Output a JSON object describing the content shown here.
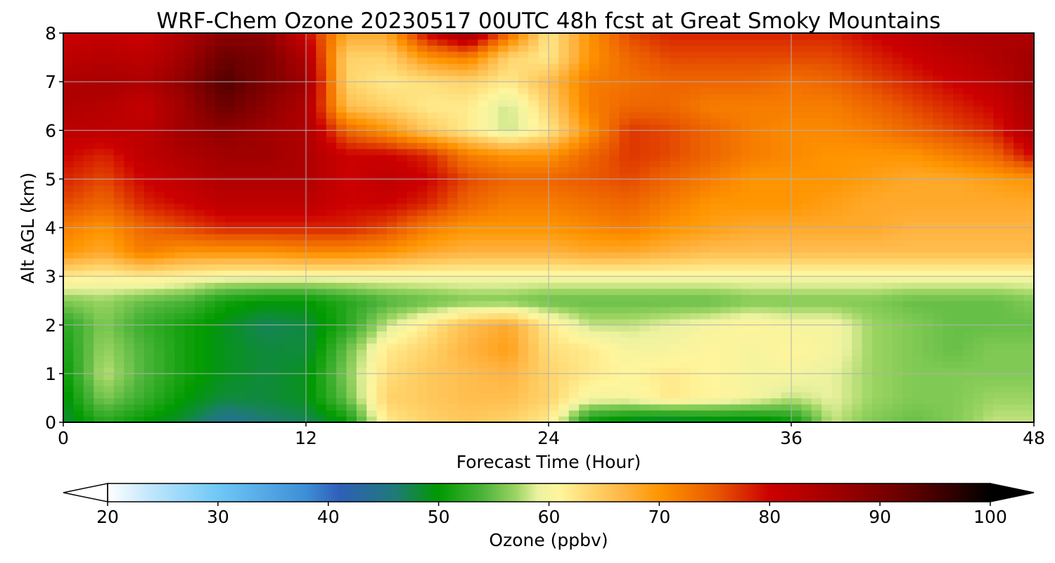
{
  "chart_data": {
    "type": "heatmap",
    "title": "WRF-Chem Ozone  20230517 00UTC 48h fcst at Great Smoky Mountains",
    "xlabel": "Forecast Time (Hour)",
    "ylabel": "Alt AGL (km)",
    "xlim": [
      0,
      48
    ],
    "ylim": [
      0,
      8
    ],
    "xticks": [
      "0",
      "12",
      "24",
      "36",
      "48"
    ],
    "yticks": [
      "0",
      "1",
      "2",
      "3",
      "4",
      "5",
      "6",
      "7",
      "8"
    ],
    "grid": true,
    "x": [
      0,
      2,
      4,
      6,
      8,
      10,
      12,
      14,
      16,
      18,
      20,
      22,
      24,
      26,
      28,
      30,
      32,
      34,
      36,
      38,
      40,
      42,
      44,
      46,
      48
    ],
    "y": [
      0,
      0.5,
      1,
      1.5,
      2,
      2.5,
      3,
      3.5,
      4,
      4.5,
      5,
      5.5,
      6,
      6.5,
      7,
      7.5,
      8
    ],
    "z": [
      [
        48,
        52,
        50,
        48,
        44,
        46,
        47,
        50,
        62,
        64,
        65,
        64,
        62,
        50,
        48,
        47,
        48,
        48,
        50,
        58,
        56,
        55,
        56,
        58,
        58
      ],
      [
        49,
        56,
        53,
        50,
        48,
        48,
        49,
        55,
        64,
        65,
        66,
        66,
        64,
        60,
        60,
        62,
        61,
        60,
        58,
        59,
        57,
        56,
        56,
        57,
        57
      ],
      [
        50,
        58,
        54,
        51,
        49,
        48,
        49,
        56,
        63,
        65,
        66,
        67,
        64,
        62,
        61,
        62,
        61,
        60,
        60,
        59,
        57,
        56,
        56,
        56,
        56
      ],
      [
        51,
        57,
        54,
        51,
        49,
        48,
        48,
        55,
        62,
        64,
        67,
        69,
        63,
        62,
        60,
        60,
        61,
        60,
        61,
        60,
        57,
        56,
        55,
        56,
        56
      ],
      [
        52,
        56,
        53,
        51,
        49,
        47,
        48,
        52,
        58,
        62,
        66,
        68,
        62,
        58,
        58,
        59,
        60,
        61,
        60,
        60,
        57,
        56,
        55,
        55,
        55
      ],
      [
        56,
        57,
        55,
        54,
        51,
        50,
        50,
        52,
        54,
        55,
        56,
        56,
        55,
        55,
        55,
        55,
        55,
        56,
        56,
        56,
        56,
        55,
        55,
        55,
        56
      ],
      [
        62,
        61,
        62,
        61,
        60,
        60,
        60,
        60,
        60,
        60,
        60,
        60,
        60,
        60,
        60,
        60,
        60,
        60,
        60,
        60,
        60,
        60,
        60,
        60,
        60
      ],
      [
        70,
        68,
        72,
        70,
        70,
        70,
        71,
        71,
        70,
        68,
        67,
        67,
        67,
        68,
        68,
        67,
        66,
        66,
        66,
        66,
        66,
        66,
        66,
        66,
        66
      ],
      [
        72,
        70,
        74,
        76,
        78,
        78,
        78,
        78,
        76,
        72,
        70,
        70,
        70,
        71,
        72,
        70,
        69,
        68,
        68,
        68,
        68,
        67,
        67,
        67,
        67
      ],
      [
        76,
        74,
        78,
        80,
        82,
        82,
        82,
        80,
        80,
        78,
        74,
        72,
        72,
        73,
        74,
        72,
        70,
        70,
        70,
        69,
        68,
        68,
        68,
        68,
        68
      ],
      [
        78,
        76,
        80,
        82,
        84,
        84,
        84,
        80,
        82,
        80,
        76,
        74,
        74,
        75,
        76,
        74,
        72,
        70,
        70,
        70,
        69,
        68,
        68,
        69,
        70
      ],
      [
        80,
        78,
        82,
        84,
        86,
        86,
        84,
        80,
        80,
        78,
        72,
        70,
        70,
        74,
        77,
        76,
        74,
        72,
        71,
        70,
        70,
        70,
        72,
        74,
        80
      ],
      [
        82,
        82,
        82,
        86,
        88,
        86,
        84,
        74,
        70,
        65,
        62,
        58,
        62,
        70,
        77,
        76,
        74,
        72,
        71,
        71,
        72,
        74,
        76,
        78,
        84
      ],
      [
        84,
        83,
        81,
        86,
        92,
        88,
        84,
        66,
        64,
        62,
        62,
        58,
        64,
        72,
        74,
        74,
        72,
        72,
        72,
        72,
        74,
        76,
        78,
        80,
        85
      ],
      [
        84,
        85,
        84,
        88,
        94,
        90,
        86,
        64,
        62,
        63,
        64,
        62,
        66,
        72,
        73,
        74,
        74,
        74,
        73,
        74,
        76,
        78,
        80,
        82,
        86
      ],
      [
        82,
        83,
        82,
        86,
        92,
        90,
        84,
        64,
        64,
        70,
        72,
        64,
        62,
        70,
        74,
        76,
        76,
        76,
        76,
        76,
        78,
        80,
        82,
        84,
        86
      ],
      [
        80,
        81,
        80,
        84,
        88,
        88,
        80,
        68,
        68,
        80,
        86,
        74,
        62,
        70,
        76,
        78,
        78,
        78,
        78,
        78,
        80,
        82,
        84,
        84,
        84
      ]
    ],
    "colorbar": {
      "label": "Ozone  (ppbv)",
      "range": [
        20,
        100
      ],
      "ticks": [
        "20",
        "30",
        "40",
        "50",
        "60",
        "70",
        "80",
        "90",
        "100"
      ],
      "extend": "both",
      "colors": [
        "#ffffff",
        "#bfe6fb",
        "#6fc8f7",
        "#3d8ed6",
        "#2f5fba",
        "#1f7a78",
        "#009a00",
        "#4cb43a",
        "#9bd462",
        "#ecf2a0",
        "#fff59c",
        "#ffd36a",
        "#ffb340",
        "#ff9500",
        "#ea5a00",
        "#cc0000",
        "#a00000",
        "#6a0000",
        "#2a0000",
        "#000000"
      ],
      "color_stops": [
        20,
        24,
        30,
        38,
        41,
        46,
        50,
        54,
        57,
        59,
        61,
        64,
        67,
        70,
        75,
        80,
        86,
        92,
        97,
        100
      ]
    }
  }
}
